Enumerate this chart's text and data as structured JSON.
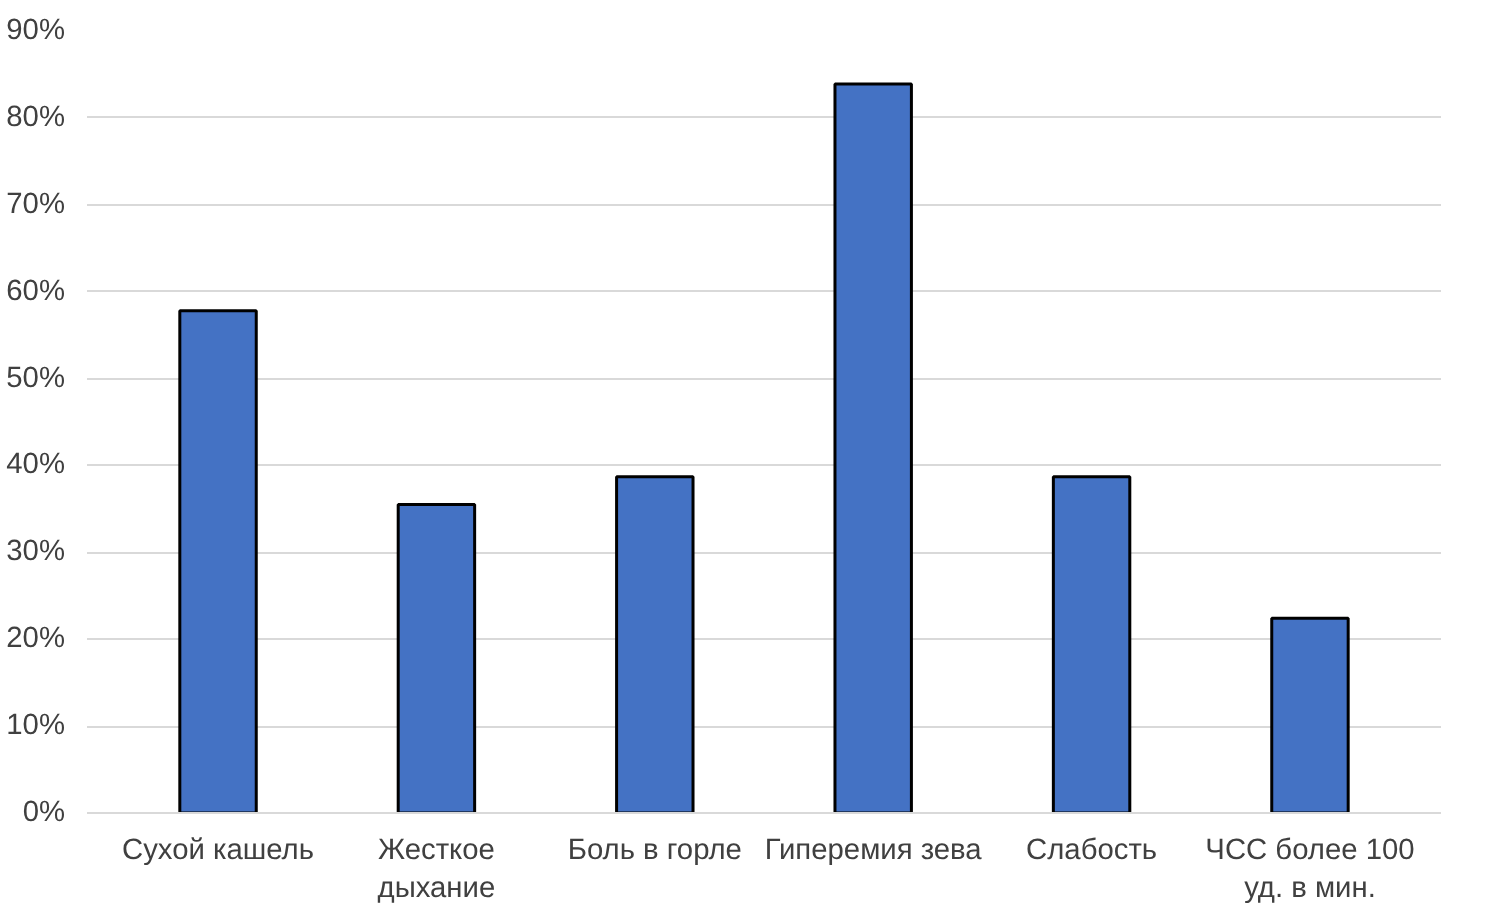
{
  "chart_data": {
    "type": "bar",
    "categories": [
      "Сухой кашель",
      "Жесткое\nдыхание",
      "Боль в горле",
      "Гиперемия зева",
      "Слабость",
      "ЧСС более 100\nуд. в мин."
    ],
    "values": [
      57.8,
      35.5,
      38.7,
      83.9,
      38.7,
      22.4
    ],
    "color": "#4472c4",
    "ylim": [
      0,
      90
    ],
    "yticks": [
      {
        "value": 0,
        "label": "0%"
      },
      {
        "value": 10,
        "label": "10%"
      },
      {
        "value": 20,
        "label": "20%"
      },
      {
        "value": 30,
        "label": "30%"
      },
      {
        "value": 40,
        "label": "40%"
      },
      {
        "value": 50,
        "label": "50%"
      },
      {
        "value": 60,
        "label": "60%"
      },
      {
        "value": 70,
        "label": "70%"
      },
      {
        "value": 80,
        "label": "80%"
      },
      {
        "value": 90,
        "label": "90%"
      }
    ],
    "grid": "y"
  }
}
